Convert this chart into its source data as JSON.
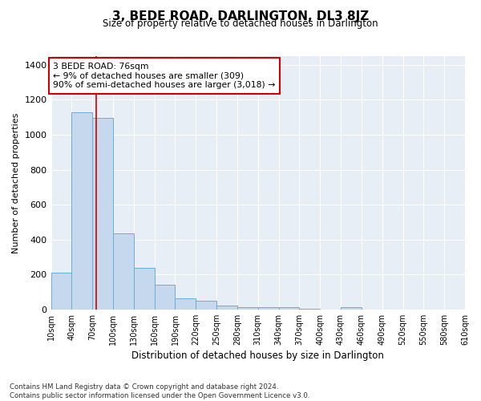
{
  "title": "3, BEDE ROAD, DARLINGTON, DL3 8JZ",
  "subtitle": "Size of property relative to detached houses in Darlington",
  "xlabel": "Distribution of detached houses by size in Darlington",
  "ylabel": "Number of detached properties",
  "bar_color": "#c5d8ed",
  "bar_edge_color": "#6aaed6",
  "background_color": "#e8eef5",
  "grid_color": "#ffffff",
  "bins": [
    10,
    40,
    70,
    100,
    130,
    160,
    190,
    220,
    250,
    280,
    310,
    340,
    370,
    400,
    430,
    460,
    490,
    520,
    550,
    580,
    610
  ],
  "values": [
    210,
    1130,
    1095,
    435,
    240,
    140,
    62,
    48,
    22,
    15,
    15,
    15,
    3,
    0,
    12,
    0,
    0,
    0,
    0,
    0
  ],
  "tick_labels": [
    "10sqm",
    "40sqm",
    "70sqm",
    "100sqm",
    "130sqm",
    "160sqm",
    "190sqm",
    "220sqm",
    "250sqm",
    "280sqm",
    "310sqm",
    "340sqm",
    "370sqm",
    "400sqm",
    "430sqm",
    "460sqm",
    "490sqm",
    "520sqm",
    "550sqm",
    "580sqm",
    "610sqm"
  ],
  "property_line_x": 76,
  "property_line_color": "#cc0000",
  "annotation_line1": "3 BEDE ROAD: 76sqm",
  "annotation_line2": "← 9% of detached houses are smaller (309)",
  "annotation_line3": "90% of semi-detached houses are larger (3,018) →",
  "ylim": [
    0,
    1450
  ],
  "yticks": [
    0,
    200,
    400,
    600,
    800,
    1000,
    1200,
    1400
  ],
  "footnote": "Contains HM Land Registry data © Crown copyright and database right 2024.\nContains public sector information licensed under the Open Government Licence v3.0.",
  "fig_width": 6.0,
  "fig_height": 5.0
}
